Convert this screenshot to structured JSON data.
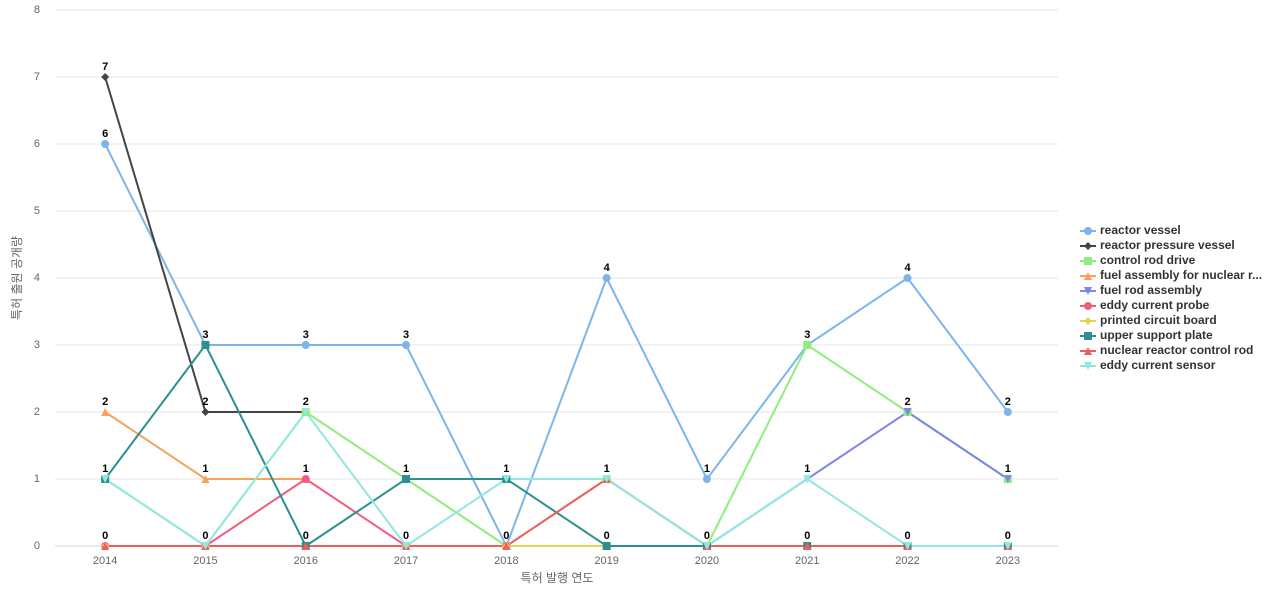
{
  "chart_data": {
    "type": "line",
    "xlabel": "특허 발행 연도",
    "ylabel": "특허 출원 공개량",
    "categories": [
      "2014",
      "2015",
      "2016",
      "2017",
      "2018",
      "2019",
      "2020",
      "2021",
      "2022",
      "2023"
    ],
    "ylim": [
      0,
      8
    ],
    "yticks": [
      0,
      1,
      2,
      3,
      4,
      5,
      6,
      7,
      8
    ],
    "grid": true,
    "legend": "right",
    "series": [
      {
        "name": "reactor vessel",
        "color": "#7cb5ec",
        "marker": "circle",
        "values": [
          6,
          3,
          3,
          3,
          0,
          4,
          1,
          3,
          4,
          2
        ]
      },
      {
        "name": "reactor pressure vessel",
        "color": "#434348",
        "marker": "diamond",
        "values": [
          7,
          2,
          2,
          null,
          null,
          null,
          null,
          null,
          null,
          null
        ]
      },
      {
        "name": "control rod drive",
        "color": "#90ed7d",
        "marker": "square",
        "values": [
          1,
          0,
          2,
          1,
          0,
          1,
          0,
          3,
          2,
          1
        ]
      },
      {
        "name": "fuel assembly for nuclear r...",
        "color": "#f7a35c",
        "marker": "triangle",
        "values": [
          2,
          1,
          1,
          null,
          null,
          null,
          null,
          null,
          null,
          null
        ]
      },
      {
        "name": "fuel rod assembly",
        "color": "#8085e9",
        "marker": "triangle-down",
        "values": [
          null,
          null,
          null,
          null,
          null,
          null,
          0,
          1,
          2,
          1
        ]
      },
      {
        "name": "eddy current probe",
        "color": "#f15c80",
        "marker": "circle",
        "values": [
          0,
          0,
          1,
          0,
          0,
          null,
          null,
          null,
          null,
          null
        ]
      },
      {
        "name": "printed circuit board",
        "color": "#e4d354",
        "marker": "diamond",
        "values": [
          0,
          0,
          0,
          0,
          0,
          0,
          0,
          0,
          0,
          0
        ]
      },
      {
        "name": "upper support plate",
        "color": "#2b908f",
        "marker": "square",
        "values": [
          1,
          3,
          0,
          1,
          1,
          0,
          0,
          0,
          0,
          0
        ]
      },
      {
        "name": "nuclear reactor control rod",
        "color": "#f45b5b",
        "marker": "triangle",
        "values": [
          0,
          0,
          0,
          0,
          0,
          1,
          0,
          0,
          0,
          0
        ]
      },
      {
        "name": "eddy current sensor",
        "color": "#91e8e1",
        "marker": "triangle-down",
        "values": [
          1,
          0,
          2,
          0,
          1,
          1,
          0,
          1,
          0,
          0
        ]
      }
    ]
  }
}
